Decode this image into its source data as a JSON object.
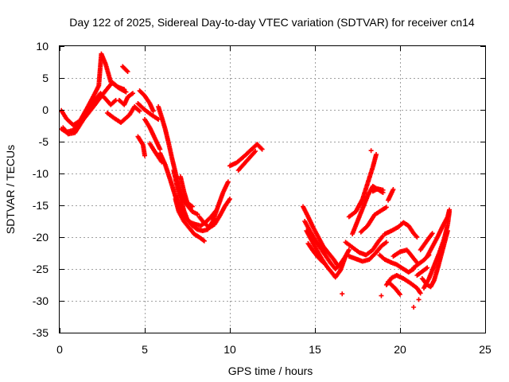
{
  "chart_data": {
    "type": "scatter",
    "title": "Day 122 of 2025, Sidereal Day-to-day VTEC variation (SDTVAR) for receiver cn14",
    "xlabel": "GPS time / hours",
    "ylabel": "SDTVAR / TECUs",
    "xlim": [
      0,
      25
    ],
    "ylim": [
      -35,
      10
    ],
    "xticks": [
      0,
      5,
      10,
      15,
      20,
      25
    ],
    "yticks": [
      -35,
      -30,
      -25,
      -20,
      -15,
      -10,
      -5,
      0,
      5,
      10
    ],
    "grid": true,
    "marker": "+",
    "color": "#ff0000",
    "tracks": [
      {
        "name": "t1",
        "points": [
          [
            0.1,
            -3.0
          ],
          [
            0.4,
            -3.5
          ],
          [
            0.8,
            -3.2
          ],
          [
            1.2,
            -2.0
          ],
          [
            1.6,
            -0.3
          ],
          [
            2.0,
            1.2
          ],
          [
            2.4,
            2.6
          ],
          [
            2.7,
            1.7
          ],
          [
            3.0,
            0.8
          ],
          [
            3.3,
            1.5
          ]
        ]
      },
      {
        "name": "t2",
        "points": [
          [
            0.2,
            -2.8
          ],
          [
            0.5,
            -3.8
          ],
          [
            0.9,
            -3.6
          ],
          [
            1.4,
            -1.5
          ],
          [
            1.9,
            0.2
          ],
          [
            2.3,
            1.6
          ],
          [
            2.7,
            3.0
          ],
          [
            3.1,
            4.3
          ],
          [
            3.5,
            3.4
          ],
          [
            3.9,
            2.8
          ]
        ]
      },
      {
        "name": "t3",
        "points": [
          [
            0.1,
            -0.1
          ],
          [
            0.4,
            -1.4
          ],
          [
            0.8,
            -2.4
          ],
          [
            1.2,
            -1.7
          ],
          [
            1.6,
            0.2
          ],
          [
            2.0,
            2.2
          ],
          [
            2.3,
            3.8
          ],
          [
            2.45,
            8.8
          ],
          [
            2.7,
            7.2
          ],
          [
            3.0,
            4.4
          ],
          [
            3.4,
            3.6
          ],
          [
            3.8,
            3.2
          ]
        ]
      },
      {
        "name": "t4",
        "points": [
          [
            2.8,
            -0.5
          ],
          [
            3.2,
            -1.3
          ],
          [
            3.6,
            -2.0
          ],
          [
            4.1,
            -0.8
          ],
          [
            4.4,
            0.5
          ],
          [
            4.7,
            -0.2
          ]
        ]
      },
      {
        "name": "t5",
        "points": [
          [
            3.5,
            1.5
          ],
          [
            3.8,
            0.8
          ],
          [
            4.0,
            2.0
          ],
          [
            4.3,
            2.6
          ]
        ]
      },
      {
        "name": "t6",
        "points": [
          [
            3.7,
            6.8
          ],
          [
            4.0,
            6.0
          ]
        ]
      },
      {
        "name": "t7",
        "points": [
          [
            4.7,
            3.0
          ],
          [
            5.0,
            2.2
          ],
          [
            5.3,
            1.0
          ],
          [
            5.5,
            -0.2
          ]
        ]
      },
      {
        "name": "t8",
        "points": [
          [
            4.6,
            1.0
          ],
          [
            5.0,
            0.0
          ],
          [
            5.4,
            -0.8
          ],
          [
            5.8,
            -1.5
          ]
        ]
      },
      {
        "name": "t9",
        "points": [
          [
            4.6,
            -4.2
          ],
          [
            4.9,
            -5.5
          ],
          [
            5.0,
            -7.2
          ]
        ]
      },
      {
        "name": "t10",
        "points": [
          [
            5.0,
            -1.5
          ],
          [
            5.3,
            -2.8
          ],
          [
            5.6,
            -4.5
          ],
          [
            5.9,
            -6.2
          ]
        ]
      },
      {
        "name": "t11",
        "points": [
          [
            5.3,
            -5.3
          ],
          [
            5.6,
            -6.6
          ],
          [
            6.0,
            -8.2
          ]
        ]
      },
      {
        "name": "t12",
        "points": [
          [
            5.8,
            0.5
          ],
          [
            6.0,
            -1.2
          ],
          [
            6.2,
            -3.0
          ],
          [
            6.4,
            -5.2
          ],
          [
            6.6,
            -7.6
          ],
          [
            6.8,
            -9.8
          ],
          [
            7.0,
            -12.0
          ],
          [
            7.2,
            -13.6
          ],
          [
            7.5,
            -15.0
          ],
          [
            7.8,
            -16.0
          ],
          [
            8.1,
            -16.4
          ]
        ]
      },
      {
        "name": "t13",
        "points": [
          [
            5.9,
            -6.8
          ],
          [
            6.2,
            -8.6
          ],
          [
            6.5,
            -11.0
          ],
          [
            6.8,
            -13.6
          ],
          [
            7.1,
            -15.5
          ],
          [
            7.4,
            -17.0
          ],
          [
            7.7,
            -17.7
          ],
          [
            8.0,
            -18.0
          ],
          [
            8.3,
            -18.2
          ],
          [
            8.6,
            -17.6
          ],
          [
            8.9,
            -16.8
          ],
          [
            9.2,
            -15.8
          ]
        ]
      },
      {
        "name": "t14",
        "points": [
          [
            6.7,
            -9.5
          ],
          [
            6.9,
            -12.0
          ],
          [
            7.1,
            -13.8
          ],
          [
            7.3,
            -15.8
          ],
          [
            7.5,
            -17.2
          ],
          [
            7.8,
            -18.2
          ],
          [
            8.1,
            -18.8
          ],
          [
            8.4,
            -19.0
          ],
          [
            8.7,
            -18.8
          ],
          [
            9.0,
            -17.5
          ],
          [
            9.3,
            -15.2
          ],
          [
            9.6,
            -13.0
          ],
          [
            9.9,
            -11.3
          ]
        ]
      },
      {
        "name": "t15",
        "points": [
          [
            6.8,
            -14.0
          ],
          [
            7.0,
            -16.0
          ],
          [
            7.3,
            -17.5
          ],
          [
            7.6,
            -18.5
          ],
          [
            7.9,
            -19.5
          ],
          [
            8.2,
            -20.0
          ],
          [
            8.5,
            -20.6
          ]
        ]
      },
      {
        "name": "t16",
        "points": [
          [
            7.1,
            -10.5
          ],
          [
            7.3,
            -12.8
          ],
          [
            7.5,
            -14.6
          ],
          [
            7.8,
            -15.2
          ]
        ]
      },
      {
        "name": "t17",
        "points": [
          [
            8.2,
            -16.8
          ],
          [
            8.5,
            -17.8
          ],
          [
            8.8,
            -18.5
          ],
          [
            9.1,
            -18.0
          ],
          [
            9.4,
            -16.7
          ],
          [
            9.7,
            -15.2
          ],
          [
            10.0,
            -14.0
          ]
        ]
      },
      {
        "name": "t18",
        "points": [
          [
            10.0,
            -8.8
          ],
          [
            10.4,
            -8.3
          ],
          [
            10.8,
            -7.4
          ],
          [
            11.2,
            -6.4
          ],
          [
            11.6,
            -5.4
          ],
          [
            11.9,
            -6.2
          ]
        ]
      },
      {
        "name": "t19",
        "points": [
          [
            10.5,
            -9.5
          ],
          [
            11.0,
            -8.0
          ],
          [
            11.5,
            -6.5
          ]
        ]
      },
      {
        "name": "t20",
        "points": [
          [
            14.3,
            -15.2
          ],
          [
            14.6,
            -16.8
          ],
          [
            14.9,
            -18.5
          ],
          [
            15.2,
            -20.0
          ],
          [
            15.5,
            -21.5
          ],
          [
            15.8,
            -22.5
          ],
          [
            16.1,
            -23.5
          ],
          [
            16.3,
            -24.3
          ]
        ]
      },
      {
        "name": "t21",
        "points": [
          [
            14.4,
            -17.5
          ],
          [
            14.7,
            -19.0
          ],
          [
            15.0,
            -20.4
          ],
          [
            15.3,
            -21.6
          ],
          [
            15.6,
            -22.8
          ],
          [
            15.9,
            -24.0
          ],
          [
            16.2,
            -25.0
          ],
          [
            16.5,
            -24.2
          ],
          [
            16.8,
            -23.0
          ],
          [
            17.0,
            -22.0
          ]
        ]
      },
      {
        "name": "t22",
        "points": [
          [
            14.5,
            -19.0
          ],
          [
            14.8,
            -20.5
          ],
          [
            15.1,
            -22.0
          ],
          [
            15.4,
            -23.4
          ],
          [
            15.7,
            -24.6
          ],
          [
            16.0,
            -25.6
          ],
          [
            16.2,
            -26.3
          ],
          [
            16.5,
            -25.2
          ],
          [
            16.8,
            -23.0
          ]
        ]
      },
      {
        "name": "t23",
        "points": [
          [
            14.6,
            -21.0
          ],
          [
            14.9,
            -22.2
          ],
          [
            15.2,
            -23.2
          ],
          [
            15.5,
            -24.0
          ]
        ]
      },
      {
        "name": "t24",
        "points": [
          [
            16.6,
            -28.9
          ]
        ]
      },
      {
        "name": "t25",
        "points": [
          [
            16.8,
            -20.8
          ],
          [
            17.2,
            -21.6
          ],
          [
            17.6,
            -22.4
          ],
          [
            18.0,
            -22.8
          ],
          [
            18.4,
            -22.0
          ],
          [
            18.7,
            -20.8
          ],
          [
            19.0,
            -19.8
          ]
        ]
      },
      {
        "name": "t26",
        "points": [
          [
            17.0,
            -23.0
          ],
          [
            17.4,
            -23.4
          ],
          [
            17.8,
            -23.8
          ],
          [
            18.2,
            -23.5
          ],
          [
            18.6,
            -22.4
          ],
          [
            18.9,
            -21.4
          ],
          [
            19.2,
            -20.8
          ]
        ]
      },
      {
        "name": "t27",
        "points": [
          [
            17.2,
            -19.5
          ],
          [
            17.5,
            -17.5
          ],
          [
            17.8,
            -15.5
          ],
          [
            18.1,
            -13.5
          ],
          [
            18.4,
            -12.0
          ],
          [
            18.7,
            -12.5
          ],
          [
            19.0,
            -13.0
          ]
        ]
      },
      {
        "name": "t28",
        "points": [
          [
            17.0,
            -16.8
          ],
          [
            17.4,
            -16.0
          ],
          [
            17.8,
            -14.0
          ],
          [
            18.1,
            -11.5
          ],
          [
            18.4,
            -9.0
          ],
          [
            18.6,
            -7.0
          ]
        ]
      },
      {
        "name": "t29",
        "points": [
          [
            17.7,
            -19.2
          ],
          [
            18.1,
            -18.2
          ],
          [
            18.5,
            -16.5
          ],
          [
            18.9,
            -15.8
          ],
          [
            19.2,
            -15.3
          ]
        ]
      },
      {
        "name": "t30",
        "points": [
          [
            18.4,
            -12.8
          ],
          [
            18.7,
            -12.4
          ],
          [
            19.0,
            -12.6
          ]
        ]
      },
      {
        "name": "t31",
        "points": [
          [
            19.3,
            -14.2
          ],
          [
            19.6,
            -12.5
          ]
        ]
      },
      {
        "name": "t32",
        "points": [
          [
            18.3,
            -6.4
          ]
        ]
      },
      {
        "name": "t33",
        "points": [
          [
            18.8,
            -22.8
          ],
          [
            19.1,
            -23.5
          ],
          [
            19.5,
            -24.0
          ],
          [
            19.8,
            -24.3
          ],
          [
            20.2,
            -25.0
          ],
          [
            20.5,
            -25.5
          ],
          [
            20.8,
            -25.0
          ]
        ]
      },
      {
        "name": "t34",
        "points": [
          [
            19.3,
            -27.0
          ],
          [
            19.7,
            -28.0
          ],
          [
            20.0,
            -29.0
          ]
        ]
      },
      {
        "name": "t35",
        "points": [
          [
            18.9,
            -29.2
          ]
        ]
      },
      {
        "name": "t36",
        "points": [
          [
            19.2,
            -27.5
          ],
          [
            19.5,
            -26.4
          ],
          [
            19.8,
            -26.0
          ],
          [
            20.2,
            -26.5
          ],
          [
            20.6,
            -27.2
          ],
          [
            21.0,
            -28.0
          ],
          [
            21.2,
            -28.8
          ]
        ]
      },
      {
        "name": "t37",
        "points": [
          [
            20.8,
            -31.0
          ]
        ]
      },
      {
        "name": "t38",
        "points": [
          [
            21.1,
            -29.8
          ]
        ]
      },
      {
        "name": "t39",
        "points": [
          [
            19.1,
            -19.5
          ],
          [
            19.5,
            -19.0
          ],
          [
            19.9,
            -18.4
          ],
          [
            20.2,
            -17.7
          ],
          [
            20.5,
            -18.2
          ],
          [
            20.8,
            -19.4
          ],
          [
            21.0,
            -20.0
          ]
        ]
      },
      {
        "name": "t40",
        "points": [
          [
            19.6,
            -23.0
          ],
          [
            20.0,
            -22.3
          ],
          [
            20.4,
            -22.0
          ],
          [
            20.7,
            -23.0
          ],
          [
            21.0,
            -24.0
          ]
        ]
      },
      {
        "name": "t41",
        "points": [
          [
            20.8,
            -24.8
          ],
          [
            21.1,
            -24.2
          ],
          [
            21.4,
            -23.6
          ],
          [
            21.7,
            -22.8
          ]
        ]
      },
      {
        "name": "t42",
        "points": [
          [
            21.0,
            -26.0
          ],
          [
            21.3,
            -25.4
          ],
          [
            21.6,
            -24.8
          ]
        ]
      },
      {
        "name": "t43",
        "points": [
          [
            21.2,
            -22.0
          ],
          [
            21.6,
            -20.5
          ],
          [
            21.9,
            -19.4
          ]
        ]
      },
      {
        "name": "t44",
        "points": [
          [
            21.3,
            -26.5
          ],
          [
            21.6,
            -27.5
          ],
          [
            21.8,
            -27.8
          ],
          [
            22.0,
            -26.8
          ],
          [
            22.2,
            -25.0
          ],
          [
            22.4,
            -23.0
          ],
          [
            22.6,
            -21.0
          ],
          [
            22.8,
            -19.0
          ]
        ]
      },
      {
        "name": "t45",
        "points": [
          [
            21.4,
            -28.0
          ],
          [
            21.7,
            -26.5
          ],
          [
            22.0,
            -24.5
          ],
          [
            22.3,
            -22.5
          ],
          [
            22.6,
            -20.2
          ],
          [
            22.8,
            -18.0
          ],
          [
            22.9,
            -16.0
          ]
        ]
      },
      {
        "name": "t46",
        "points": [
          [
            21.6,
            -23.0
          ],
          [
            21.9,
            -21.5
          ],
          [
            22.2,
            -20.0
          ],
          [
            22.5,
            -18.3
          ],
          [
            22.8,
            -16.8
          ],
          [
            22.9,
            -15.7
          ]
        ]
      }
    ]
  }
}
